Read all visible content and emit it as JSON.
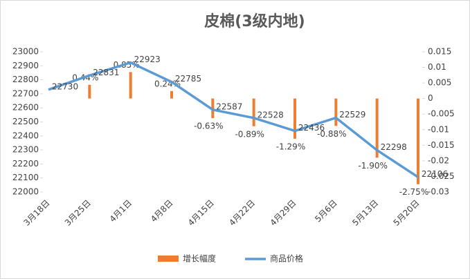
{
  "chart_data": {
    "type": "combo",
    "title": "皮棉(3级内地)",
    "categories": [
      "3月18日",
      "3月25日",
      "4月1日",
      "4月8日",
      "4月15日",
      "4月22日",
      "4月29日",
      "5月6日",
      "5月13日",
      "5月20日"
    ],
    "series": [
      {
        "name": "增长幅度",
        "type": "bar",
        "axis": "y2",
        "color": "#ed7d31",
        "values": [
          null,
          0.0044,
          0.0085,
          0.0024,
          -0.0063,
          -0.0089,
          -0.0129,
          -0.0088,
          -0.019,
          -0.0275
        ],
        "value_labels": [
          null,
          "0.44%",
          "0.85%",
          "0.24%",
          "-0.63%",
          "-0.89%",
          "-1.29%",
          "-0.88%",
          "-1.90%",
          "-2.75%"
        ]
      },
      {
        "name": "商品价格",
        "type": "line",
        "color": "#5b9bd5",
        "values": [
          22730,
          22831,
          22923,
          22785,
          22587,
          22528,
          22436,
          22529,
          22298,
          22106
        ]
      }
    ],
    "ylim": [
      22000,
      23000
    ],
    "yticks": [
      22000,
      22100,
      22200,
      22300,
      22400,
      22500,
      22600,
      22700,
      22800,
      22900,
      23000
    ],
    "y2lim": [
      -0.03,
      0.015
    ],
    "y2ticks": [
      -0.03,
      -0.025,
      -0.02,
      -0.015,
      -0.01,
      -0.005,
      0,
      0.005,
      0.01,
      0.015
    ],
    "legend": "bottom"
  }
}
